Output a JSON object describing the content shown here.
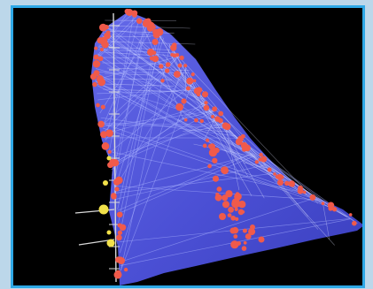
{
  "scene": {
    "frame_color": "#bcd7ea",
    "border_color": "#2ea8e6",
    "background_color": "#000000",
    "mesh_color": "#5a5ff2",
    "mesh_line_color": "#a9b2ff",
    "point_color": "#f05a4a",
    "axis_marker_color": "#f2e14a",
    "axis_color": "#d9d9d9"
  }
}
